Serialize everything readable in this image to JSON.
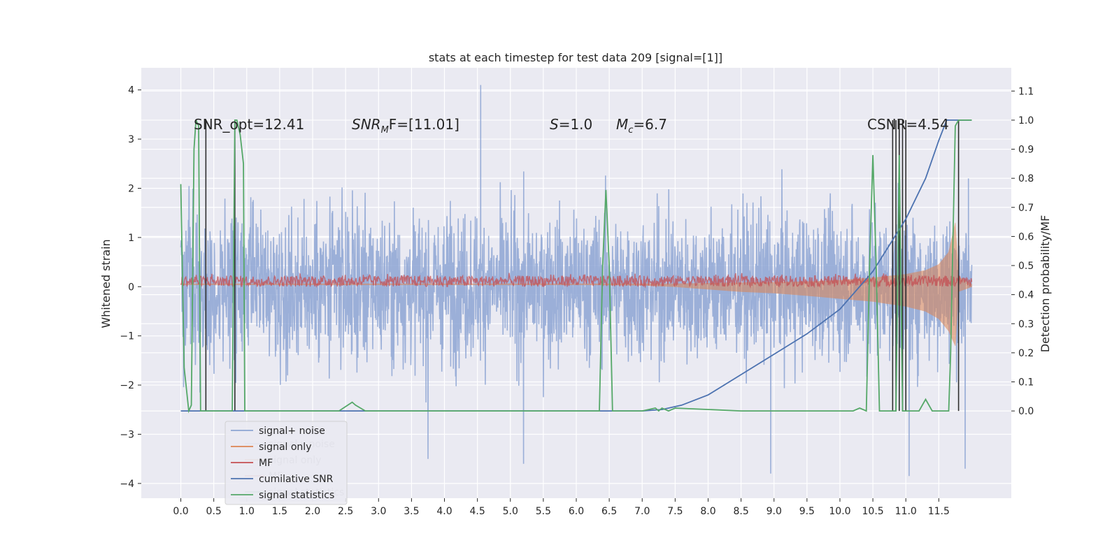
{
  "chart_data": {
    "type": "line",
    "title": "stats at each timestep for test data 209 [signal=[1]]",
    "ylabel_left": "Whitened strain",
    "ylabel_right": "Detection probability/MF",
    "xlim": [
      -0.6,
      12.6
    ],
    "ylim_left": [
      -4.3,
      4.45
    ],
    "ylim_right": [
      -0.3,
      1.18
    ],
    "x_ticks": [
      0.0,
      0.5,
      1.0,
      1.5,
      2.0,
      2.5,
      3.0,
      3.5,
      4.0,
      4.5,
      5.0,
      5.5,
      6.0,
      6.5,
      7.0,
      7.5,
      8.0,
      8.5,
      9.0,
      9.5,
      10.0,
      10.5,
      11.0,
      11.5
    ],
    "x_tick_labels": [
      "0.0",
      "0.5",
      "1.0",
      "1.5",
      "2.0",
      "2.5",
      "3.0",
      "3.5",
      "4.0",
      "4.5",
      "5.0",
      "5.5",
      "6.0",
      "6.5",
      "7.0",
      "7.5",
      "8.0",
      "8.5",
      "9.0",
      "9.5",
      "10.0",
      "10.5",
      "11.0",
      "11.5"
    ],
    "y_left_ticks": [
      -4,
      -3,
      -2,
      -1,
      0,
      1,
      2,
      3,
      4
    ],
    "y_left_tick_labels": [
      "−4",
      "−3",
      "−2",
      "−1",
      "0",
      "1",
      "2",
      "3",
      "4"
    ],
    "y_right_ticks": [
      0.0,
      0.1,
      0.2,
      0.3,
      0.4,
      0.5,
      0.6,
      0.7,
      0.8,
      0.9,
      1.0,
      1.1
    ],
    "y_right_tick_labels": [
      "0.0",
      "0.1",
      "0.2",
      "0.3",
      "0.4",
      "0.5",
      "0.6",
      "0.7",
      "0.8",
      "0.9",
      "1.0",
      "1.1"
    ],
    "grid": true,
    "legend_position": "lower-left",
    "annotations": {
      "snr_opt": "SNR_opt=12.41",
      "snr_mf_prefix": "SNR",
      "snr_mf_sub": "M",
      "snr_mf_rest": "F=[11.01]",
      "s_symbol": "S",
      "s_value": "=1.0",
      "mc_symbol": "M",
      "mc_sub": "c",
      "mc_value": "=6.7",
      "csnr": "CSNR=4.54"
    },
    "legend_front": [
      "signal+ noise",
      "signal only",
      "MF",
      "cumilative SNR",
      "signal statistics"
    ],
    "legend_back": [
      "signal+ noise",
      "signal only",
      "MF",
      "signal statistics"
    ],
    "colors": {
      "background": "#eaeaf2",
      "signal_noise": "#8da5d3",
      "signal_only": "#dd8452",
      "mf": "#c44e52",
      "cumulative_snr": "#4c72b0",
      "signal_statistics": "#55a868",
      "dark_spikes": "#2e2e2e"
    },
    "series": [
      {
        "name": "signal+ noise",
        "axis": "left",
        "note": "dense noisy trace between x=0.0 and x=12.0",
        "x_range": [
          0.0,
          12.0
        ],
        "amplitude_typical": [
          -3.0,
          3.0
        ],
        "peaks": [
          [
            4.55,
            4.1
          ],
          [
            11.95,
            2.2
          ],
          [
            8.95,
            -3.8
          ],
          [
            11.05,
            -3.85
          ],
          [
            11.9,
            -3.7
          ],
          [
            5.2,
            -3.6
          ],
          [
            3.75,
            -3.5
          ]
        ]
      },
      {
        "name": "signal only",
        "axis": "left",
        "note": "chirp: envelope grows toward merger at ~11.75",
        "x": [
          0.0,
          2.0,
          4.0,
          6.0,
          7.0,
          7.5,
          8.0,
          8.5,
          9.0,
          9.5,
          10.0,
          10.5,
          11.0,
          11.3,
          11.5,
          11.65,
          11.75,
          11.8,
          12.0
        ],
        "upper": [
          0.06,
          0.06,
          0.06,
          0.06,
          0.06,
          0.06,
          0.07,
          0.08,
          0.09,
          0.1,
          0.13,
          0.18,
          0.25,
          0.33,
          0.45,
          0.7,
          1.3,
          0.2,
          0.05
        ],
        "lower": [
          0.04,
          0.04,
          0.04,
          0.04,
          0.03,
          0.0,
          -0.05,
          -0.1,
          -0.13,
          -0.18,
          -0.24,
          -0.3,
          -0.4,
          -0.5,
          -0.65,
          -0.9,
          -1.2,
          -0.1,
          0.0
        ]
      },
      {
        "name": "MF",
        "axis": "left",
        "note": "noisy band around y=0.0 to 0.3",
        "x_range": [
          0.0,
          12.0
        ],
        "band": [
          0.0,
          0.28
        ]
      },
      {
        "name": "cumilative SNR",
        "axis": "right",
        "x": [
          0.0,
          6.5,
          7.0,
          7.3,
          7.6,
          8.0,
          8.5,
          9.0,
          9.5,
          10.0,
          10.5,
          11.0,
          11.3,
          11.5,
          11.62,
          11.68,
          12.0
        ],
        "values": [
          0.0,
          0.0,
          0.0,
          0.005,
          0.02,
          0.055,
          0.125,
          0.195,
          0.265,
          0.35,
          0.48,
          0.66,
          0.8,
          0.93,
          1.0,
          1.0,
          1.0
        ]
      },
      {
        "name": "signal statistics",
        "axis": "right",
        "x": [
          0.0,
          0.05,
          0.12,
          0.16,
          0.2,
          0.23,
          0.27,
          0.3,
          0.36,
          0.38,
          0.4,
          0.42,
          0.45,
          0.7,
          0.78,
          0.82,
          0.85,
          0.9,
          0.95,
          0.97,
          1.0,
          1.05,
          1.1,
          1.2,
          2.0,
          2.2,
          2.4,
          2.6,
          2.65,
          2.8,
          6.35,
          6.4,
          6.45,
          6.5,
          6.55,
          7.0,
          7.2,
          7.25,
          7.3,
          7.4,
          7.5,
          8.5,
          9.0,
          10.2,
          10.3,
          10.4,
          10.45,
          10.5,
          10.55,
          10.6,
          10.7,
          10.75,
          10.85,
          10.9,
          10.95,
          11.0,
          11.05,
          11.1,
          11.2,
          11.3,
          11.4,
          11.5,
          11.6,
          11.65,
          11.68,
          11.75,
          11.8,
          11.9,
          12.0
        ],
        "values": [
          0.78,
          0.15,
          0.0,
          0.02,
          0.9,
          1.0,
          0.98,
          0.0,
          0.0,
          0.0,
          0.0,
          0.0,
          0.0,
          0.0,
          0.0,
          1.0,
          1.0,
          0.95,
          0.85,
          0.0,
          0.0,
          0.0,
          0.0,
          0.0,
          0.0,
          0.0,
          0.0,
          0.03,
          0.02,
          0.0,
          0.0,
          0.5,
          0.76,
          0.5,
          0.0,
          0.0,
          0.01,
          0.0,
          0.01,
          0.0,
          0.01,
          0.0,
          0.0,
          0.0,
          0.01,
          0.0,
          0.5,
          0.88,
          0.5,
          0.0,
          0.0,
          0.0,
          0.0,
          0.88,
          0.0,
          0.0,
          0.0,
          0.0,
          0.0,
          0.04,
          0.0,
          0.0,
          0.0,
          0.0,
          0.2,
          0.98,
          1.0,
          1.0,
          1.0
        ]
      }
    ],
    "dark_spikes_x": [
      0.38,
      0.82,
      10.8,
      10.85,
      10.9,
      10.95,
      11.0,
      11.8
    ]
  }
}
